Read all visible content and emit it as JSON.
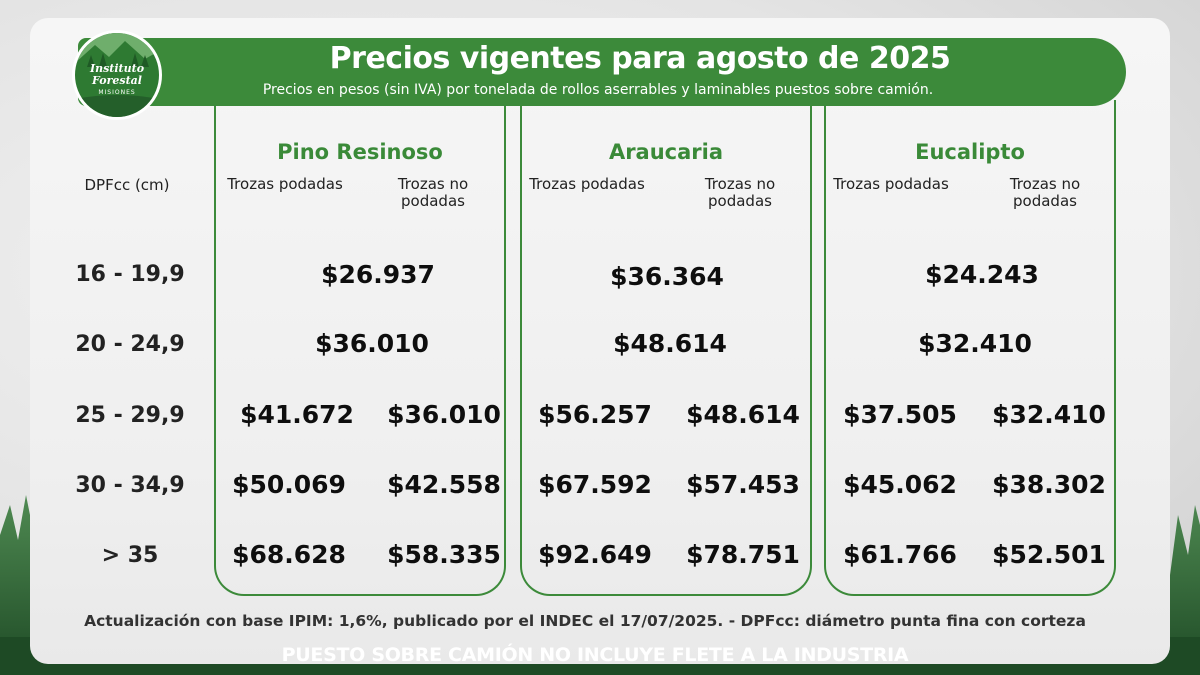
{
  "header": {
    "title": "Precios vigentes para agosto de 2025",
    "subtitle": "Precios en pesos (sin IVA) por tonelada de rollos aserrables y laminables puestos sobre camión."
  },
  "logo": {
    "name": "Instituto Forestal",
    "sub": "MISIONES"
  },
  "table": {
    "dpf_header": "DPFcc (cm)",
    "sub_podadas": "Trozas podadas",
    "sub_no_podadas": "Trozas no podadas",
    "rows": [
      "16 - 19,9",
      "20 - 24,9",
      "25 - 29,9",
      "30 - 34,9",
      "> 35"
    ],
    "species": [
      {
        "name": "Pino Resinoso",
        "merged": [
          "$26.937",
          "$36.010"
        ],
        "podadas": [
          "$41.672",
          "$50.069",
          "$68.628"
        ],
        "no_podadas": [
          "$36.010",
          "$42.558",
          "$58.335"
        ]
      },
      {
        "name": "Araucaria",
        "merged": [
          "$36.364",
          "$48.614"
        ],
        "podadas": [
          "$56.257",
          "$67.592",
          "$92.649"
        ],
        "no_podadas": [
          "$48.614",
          "$57.453",
          "$78.751"
        ]
      },
      {
        "name": "Eucalipto",
        "merged": [
          "$24.243",
          "$32.410"
        ],
        "podadas": [
          "$37.505",
          "$45.062",
          "$61.766"
        ],
        "no_podadas": [
          "$32.410",
          "$38.302",
          "$52.501"
        ]
      }
    ]
  },
  "footnote": "Actualización con base IPIM: 1,6%, publicado por el INDEC el 17/07/2025.  -  DPFcc: diámetro punta fina con corteza",
  "banner": "PUESTO SOBRE CAMIÓN NO INCLUYE FLETE A LA INDUSTRIA",
  "colors": {
    "brand_green": "#3c8a3a",
    "tree_dark": "#1f4a24"
  }
}
